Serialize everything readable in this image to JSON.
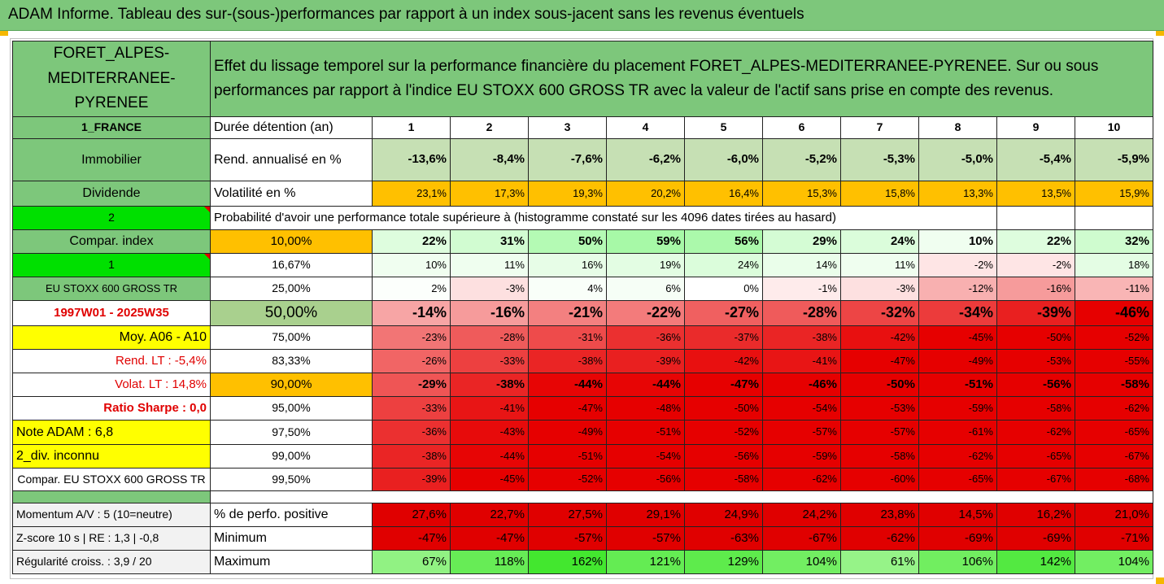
{
  "title": "ADAM Informe. Tableau des sur-(sous-)performances par rapport à un index sous-jacent sans les revenus éventuels",
  "header": {
    "fund_name": "FORET_ALPES-MEDITERRANEE-PYRENEE",
    "description": "Effet du lissage temporel sur la performance financière du placement FORET_ALPES-MEDITERRANEE-PYRENEE. Sur ou sous performances par rapport à l'indice EU STOXX 600 GROSS TR avec la valeur de l'actif sans prise en compte des revenus."
  },
  "left_labels": {
    "country": "1_FRANCE",
    "category": "Immobilier",
    "dividend": "Dividende",
    "num2": "2",
    "compar_index": "Compar. index",
    "num1": "1",
    "index_name": "EU STOXX 600 GROSS TR",
    "period": "1997W01 - 2025W35",
    "moy": "Moy. A06 - A10",
    "rend_lt": "Rend. LT :   -5,4%",
    "volat_lt": "Volat. LT :   14,8%",
    "sharpe": "Ratio Sharpe :    0,0",
    "note": "Note ADAM : 6,8",
    "div": "2_div. inconnu",
    "compar_full": "Compar. EU STOXX 600 GROSS TR",
    "momentum": "Momentum A/V : 5 (10=neutre)",
    "zscore": "Z-score 10 s  | RE : 1,3  | -0,8",
    "regularite": "Régularité croiss. : 3,9 / 20"
  },
  "row_labels": {
    "duree": "Durée détention (an)",
    "rend": "Rend. annualisé en %",
    "volat": "Volatilité en %",
    "proba": "Probabilité d'avoir une performance totale supérieure à (histogramme constaté sur les 4096 dates tirées au hasard)",
    "perf_pos": "% de perfo. positive",
    "minimum": "Minimum",
    "maximum": "Maximum"
  },
  "years": [
    "1",
    "2",
    "3",
    "4",
    "5",
    "6",
    "7",
    "8",
    "9",
    "10"
  ],
  "rend": [
    "-13,6%",
    "-8,4%",
    "-7,6%",
    "-6,2%",
    "-6,0%",
    "-5,2%",
    "-5,3%",
    "-5,0%",
    "-5,4%",
    "-5,9%"
  ],
  "volat": [
    "23,1%",
    "17,3%",
    "19,3%",
    "20,2%",
    "16,4%",
    "15,3%",
    "15,8%",
    "13,3%",
    "13,5%",
    "15,9%"
  ],
  "percentiles": [
    {
      "p": "10,00%",
      "v": [
        "22%",
        "31%",
        "50%",
        "59%",
        "56%",
        "29%",
        "24%",
        "10%",
        "22%",
        "32%"
      ]
    },
    {
      "p": "16,67%",
      "v": [
        "10%",
        "11%",
        "16%",
        "19%",
        "24%",
        "14%",
        "11%",
        "-2%",
        "-2%",
        "18%"
      ]
    },
    {
      "p": "25,00%",
      "v": [
        "2%",
        "-3%",
        "4%",
        "6%",
        "0%",
        "-1%",
        "-3%",
        "-12%",
        "-16%",
        "-11%"
      ]
    },
    {
      "p": "50,00%",
      "v": [
        "-14%",
        "-16%",
        "-21%",
        "-22%",
        "-27%",
        "-28%",
        "-32%",
        "-34%",
        "-39%",
        "-46%"
      ]
    },
    {
      "p": "75,00%",
      "v": [
        "-23%",
        "-28%",
        "-31%",
        "-36%",
        "-37%",
        "-38%",
        "-42%",
        "-45%",
        "-50%",
        "-52%"
      ]
    },
    {
      "p": "83,33%",
      "v": [
        "-26%",
        "-33%",
        "-38%",
        "-39%",
        "-42%",
        "-41%",
        "-47%",
        "-49%",
        "-53%",
        "-55%"
      ]
    },
    {
      "p": "90,00%",
      "v": [
        "-29%",
        "-38%",
        "-44%",
        "-44%",
        "-47%",
        "-46%",
        "-50%",
        "-51%",
        "-56%",
        "-58%"
      ]
    },
    {
      "p": "95,00%",
      "v": [
        "-33%",
        "-41%",
        "-47%",
        "-48%",
        "-50%",
        "-54%",
        "-53%",
        "-59%",
        "-58%",
        "-62%"
      ]
    },
    {
      "p": "97,50%",
      "v": [
        "-36%",
        "-43%",
        "-49%",
        "-51%",
        "-52%",
        "-57%",
        "-57%",
        "-61%",
        "-62%",
        "-65%"
      ]
    },
    {
      "p": "99,00%",
      "v": [
        "-38%",
        "-44%",
        "-51%",
        "-54%",
        "-56%",
        "-59%",
        "-58%",
        "-62%",
        "-65%",
        "-67%"
      ]
    },
    {
      "p": "99,50%",
      "v": [
        "-39%",
        "-45%",
        "-52%",
        "-56%",
        "-58%",
        "-62%",
        "-60%",
        "-65%",
        "-67%",
        "-68%"
      ]
    }
  ],
  "perf_pos": [
    "27,6%",
    "22,7%",
    "27,5%",
    "29,1%",
    "24,9%",
    "24,2%",
    "23,8%",
    "14,5%",
    "16,2%",
    "21,0%"
  ],
  "minimum": [
    "-47%",
    "-47%",
    "-57%",
    "-57%",
    "-63%",
    "-67%",
    "-62%",
    "-69%",
    "-69%",
    "-71%"
  ],
  "maximum": [
    "67%",
    "118%",
    "162%",
    "121%",
    "129%",
    "104%",
    "61%",
    "106%",
    "142%",
    "104%"
  ],
  "colors": {
    "header_green": "#7dc77b",
    "bright_green": "#00e000",
    "yellow": "#ffff00",
    "orange": "#ffc000",
    "red": "#e00000"
  }
}
